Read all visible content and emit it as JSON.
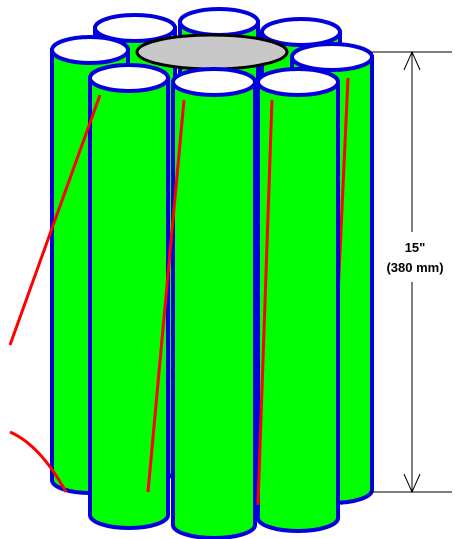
{
  "dimension": {
    "label": "15\"",
    "metric": "(380 mm)"
  }
}
